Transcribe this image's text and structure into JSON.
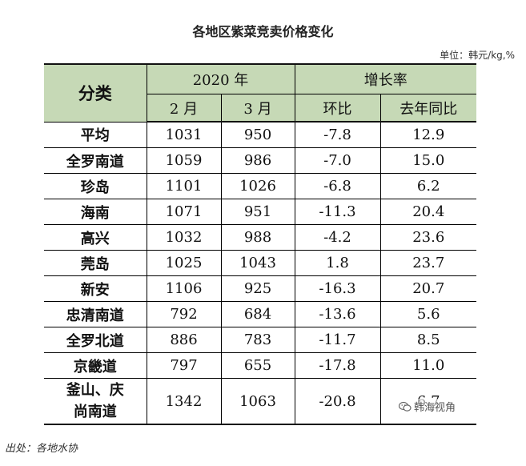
{
  "title": "各地区紫菜竞卖价格变化",
  "unit": "单位：韩元/kg,%",
  "header": {
    "category": "分类",
    "year": "2020 年",
    "growth": "增长率",
    "feb": "2 月",
    "mar": "3 月",
    "mom": "环比",
    "yoy": "去年同比"
  },
  "rows": [
    {
      "name": "平均",
      "feb": "1031",
      "mar": "950",
      "mom": "-7.8",
      "yoy": "12.9"
    },
    {
      "name": "全罗南道",
      "feb": "1059",
      "mar": "986",
      "mom": "-7.0",
      "yoy": "15.0"
    },
    {
      "name": "珍岛",
      "feb": "1101",
      "mar": "1026",
      "mom": "-6.8",
      "yoy": "6.2"
    },
    {
      "name": "海南",
      "feb": "1071",
      "mar": "951",
      "mom": "-11.3",
      "yoy": "20.4"
    },
    {
      "name": "高兴",
      "feb": "1032",
      "mar": "988",
      "mom": "-4.2",
      "yoy": "23.6"
    },
    {
      "name": "莞岛",
      "feb": "1025",
      "mar": "1043",
      "mom": "1.8",
      "yoy": "23.7"
    },
    {
      "name": "新安",
      "feb": "1106",
      "mar": "925",
      "mom": "-16.3",
      "yoy": "20.7"
    },
    {
      "name": "忠清南道",
      "feb": "792",
      "mar": "684",
      "mom": "-13.6",
      "yoy": "5.6"
    },
    {
      "name": "全罗北道",
      "feb": "886",
      "mar": "783",
      "mom": "-11.7",
      "yoy": "8.5"
    },
    {
      "name": "京畿道",
      "feb": "797",
      "mar": "655",
      "mom": "-17.8",
      "yoy": "11.0"
    },
    {
      "name_line1": "釜山、庆",
      "name_line2": "尚南道",
      "feb": "1342",
      "mar": "1063",
      "mom": "-20.8",
      "yoy": "6.7"
    }
  ],
  "source": "出处：各地水协",
  "watermark": "韩海视角",
  "icons": {
    "watermark_icon": "wechat-icon"
  }
}
